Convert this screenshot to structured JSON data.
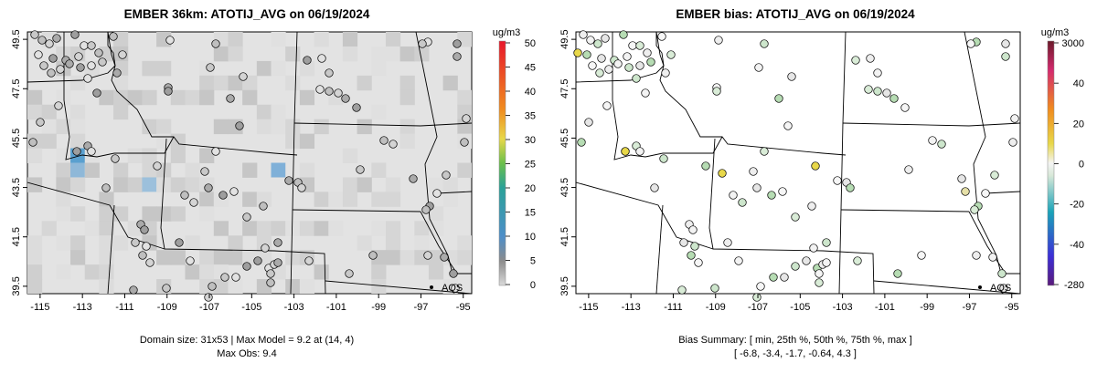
{
  "colors": {
    "map_bg": "#e3e3e3",
    "cell_dark": "#c9c9c9",
    "cell_darker": "#b8b8b8",
    "obs_border": "#000000"
  },
  "left_map": {
    "title": "EMBER 36km: ATOTIJ_AVG on 06/19/2024",
    "colorbar": {
      "units": "ug/m3",
      "labels": [
        "50",
        "45",
        "40",
        "35",
        "30",
        "25",
        "20",
        "15",
        "10",
        "5",
        "0"
      ],
      "range": [
        0,
        50
      ]
    },
    "x_ticks": [
      "-115",
      "-113",
      "-111",
      "-109",
      "-107",
      "-105",
      "-103",
      "-101",
      "-99",
      "-97",
      "-95"
    ],
    "y_ticks": [
      "49.5",
      "47.5",
      "45.5",
      "43.5",
      "41.5",
      "39.5"
    ],
    "station_label": "AQS",
    "footer": [
      "Domain size: 31x53 | Max Model = 9.2 at (14, 4)",
      "Max Obs: 9.4"
    ]
  },
  "right_map": {
    "title": "EMBER bias: ATOTIJ_AVG on 06/19/2024",
    "colorbar": {
      "units": "ug/m3",
      "labels": [
        "3000",
        "40",
        "20",
        "0",
        "-20",
        "-40",
        "-280"
      ],
      "range": [
        -280,
        3000
      ]
    },
    "x_ticks": [
      "-115",
      "-113",
      "-111",
      "-109",
      "-107",
      "-105",
      "-103",
      "-101",
      "-99",
      "-97",
      "-95"
    ],
    "y_ticks": [
      "49.5",
      "47.5",
      "45.5",
      "43.5",
      "41.5",
      "39.5"
    ],
    "station_label": "AQS",
    "footer": [
      "Bias Summary: [ min, 25th %, 50th %, 75th %, max ]",
      "[ -6.8,   -3.4,   -1.7,   -0.64,   4.3 ]"
    ]
  },
  "map_extent": {
    "lon": [
      -115.6,
      -94.6
    ],
    "lat": [
      39.2,
      49.8
    ]
  }
}
